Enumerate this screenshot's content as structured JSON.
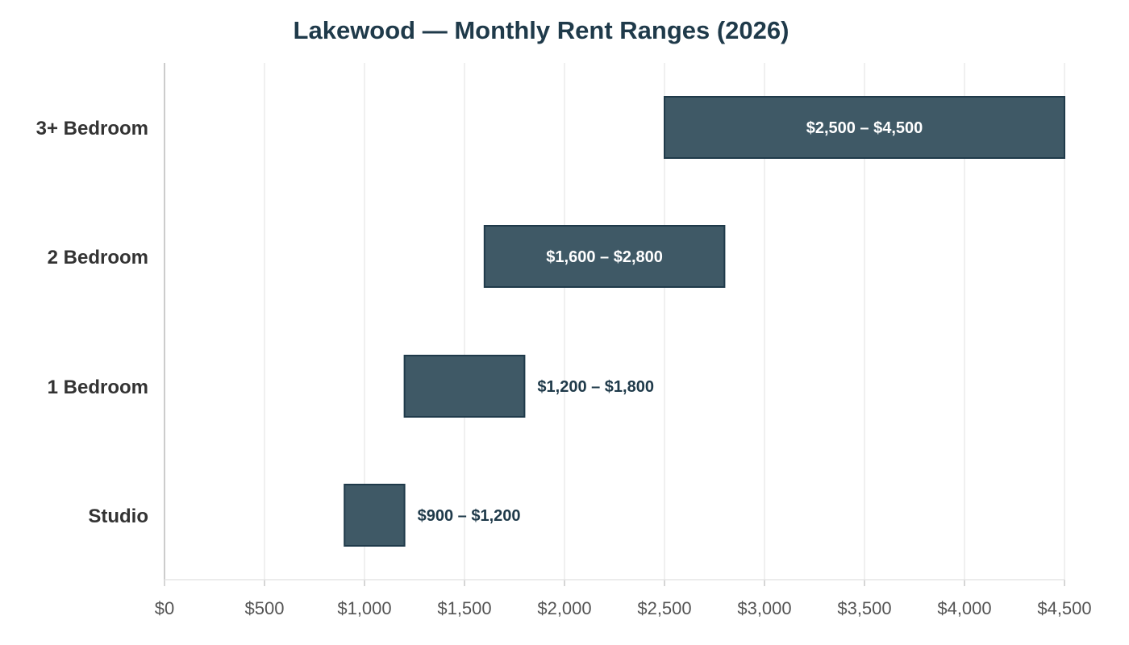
{
  "chart_data": {
    "type": "bar",
    "orientation": "horizontal",
    "subtype": "floating-range",
    "title": "Lakewood — Monthly Rent Ranges (2026)",
    "xlabel": "",
    "ylabel": "",
    "categories": [
      "3+ Bedroom",
      "2 Bedroom",
      "1 Bedroom",
      "Studio"
    ],
    "ranges": [
      {
        "category": "3+ Bedroom",
        "low": 2500,
        "high": 4500,
        "label": "$2,500 – $4,500"
      },
      {
        "category": "2 Bedroom",
        "low": 1600,
        "high": 2800,
        "label": "$1,600 – $2,800"
      },
      {
        "category": "1 Bedroom",
        "low": 1200,
        "high": 1800,
        "label": "$1,200 – $1,800"
      },
      {
        "category": "Studio",
        "low": 900,
        "high": 1200,
        "label": "$900 – $1,200"
      }
    ],
    "xlim": [
      0,
      4500
    ],
    "xticks": [
      0,
      500,
      1000,
      1500,
      2000,
      2500,
      3000,
      3500,
      4000,
      4500
    ],
    "xtick_labels": [
      "$0",
      "$500",
      "$1,000",
      "$1,500",
      "$2,000",
      "$2,500",
      "$3,000",
      "$3,500",
      "$4,000",
      "$4,500"
    ],
    "grid": "vertical",
    "legend": "none",
    "colors": {
      "bar_fill": "#3f5966",
      "bar_stroke": "#1f3a4a",
      "title": "#1f3a4a",
      "label_inside": "#ffffff",
      "label_outside": "#1f3a4a",
      "grid": "#e6e6e6",
      "axis": "#bbbbbb"
    }
  }
}
